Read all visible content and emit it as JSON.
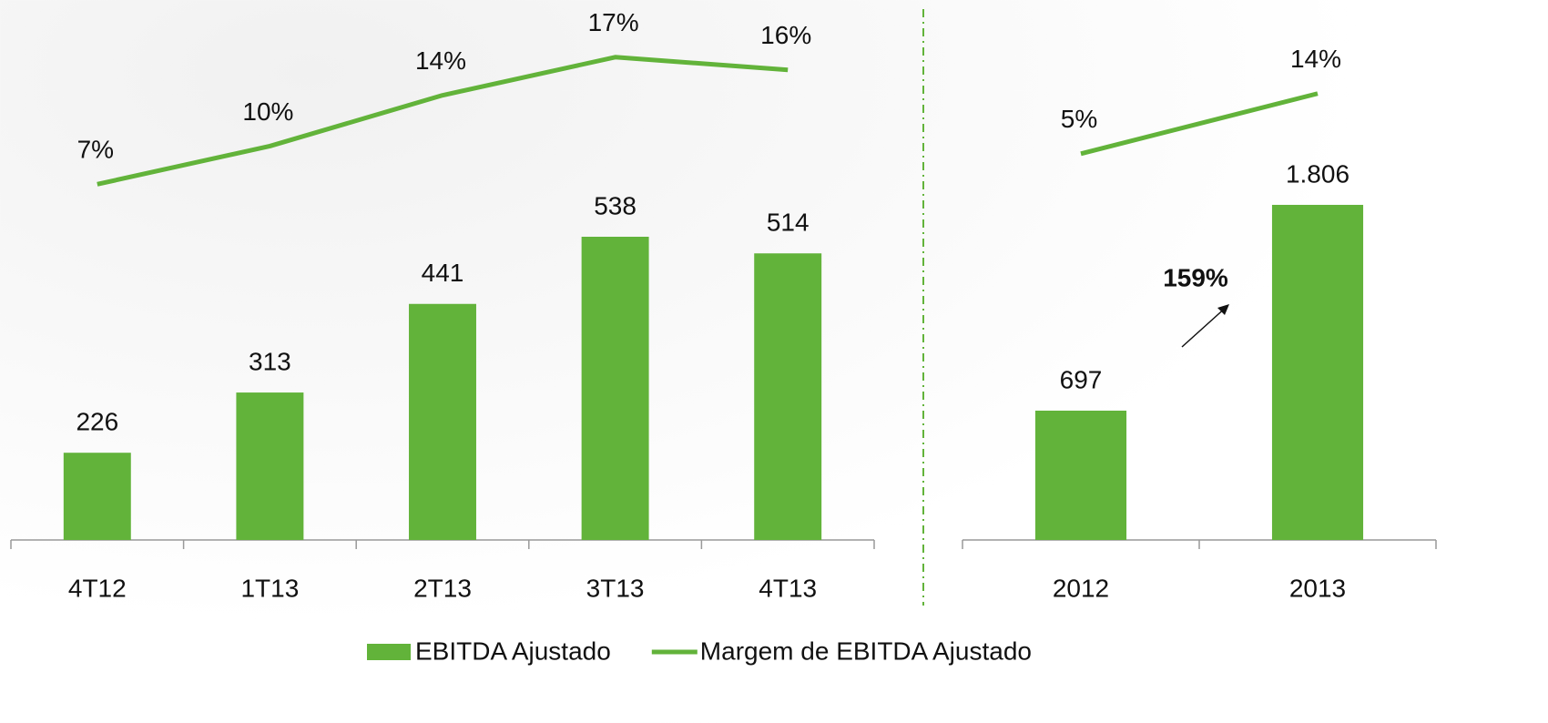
{
  "chart_data": [
    {
      "type": "bar",
      "categories": [
        "4T12",
        "1T13",
        "2T13",
        "3T13",
        "4T13"
      ],
      "series": [
        {
          "name": "EBITDA Ajustado",
          "color": "#62b33a",
          "values": [
            226,
            313,
            441,
            538,
            514
          ]
        },
        {
          "name": "Margem de EBITDA Ajustado",
          "type": "line",
          "axis": "y2",
          "color": "#62b33a",
          "values": [
            7,
            10,
            14,
            17,
            16
          ],
          "value_labels": [
            "7%",
            "10%",
            "14%",
            "17%",
            "16%"
          ]
        }
      ],
      "ylim": [
        100,
        880
      ],
      "y2lim": [
        -21,
        21.5
      ]
    },
    {
      "type": "bar",
      "categories": [
        "2012",
        "2013"
      ],
      "series": [
        {
          "color": "#62b33a",
          "values": [
            697,
            1806
          ],
          "value_labels": [
            "697",
            "1.806"
          ]
        },
        {
          "type": "line",
          "axis": "y2",
          "color": "#62b33a",
          "values": [
            5,
            14
          ],
          "value_labels": [
            "5%",
            "14%"
          ]
        }
      ],
      "ylim": [
        0,
        2910
      ],
      "y2lim": [
        -52.8,
        28
      ],
      "annotation": "159%"
    }
  ]
}
